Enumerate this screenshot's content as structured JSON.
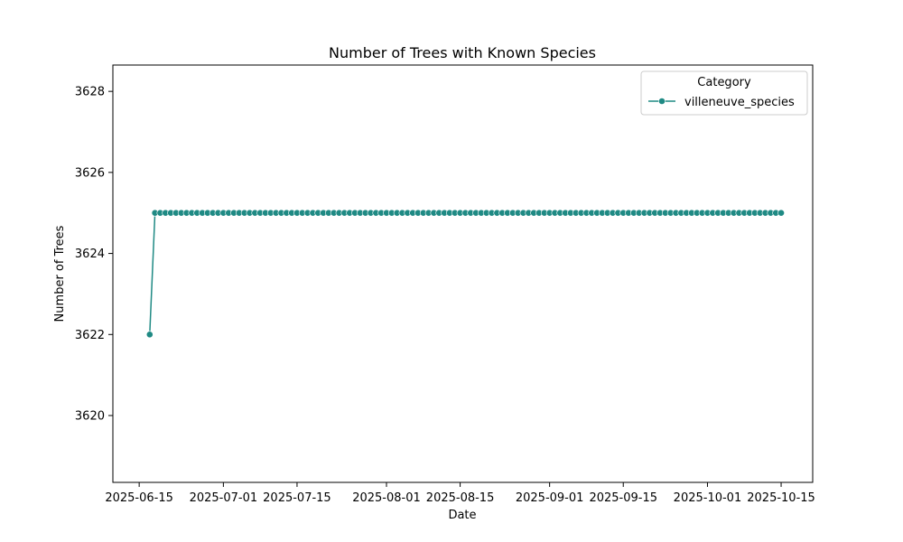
{
  "chart_data": {
    "type": "line",
    "title": "Number of Trees with Known Species",
    "xlabel": "Date",
    "ylabel": "Number of Trees",
    "x_ticks": [
      "2025-06-15",
      "2025-07-01",
      "2025-07-15",
      "2025-08-01",
      "2025-08-15",
      "2025-09-01",
      "2025-09-15",
      "2025-10-01",
      "2025-10-15"
    ],
    "y_ticks": [
      3620,
      3622,
      3624,
      3626,
      3628
    ],
    "xlim": [
      "2025-06-10",
      "2025-10-21"
    ],
    "ylim": [
      3618.35,
      3628.65
    ],
    "grid": false,
    "legend": {
      "title": "Category",
      "position": "top-right"
    },
    "colors": {
      "series": "#1f8a84"
    },
    "series": [
      {
        "name": "villeneuve_species",
        "marker": "circle",
        "start_date": "2025-06-17",
        "end_date": "2025-10-15",
        "values": [
          3622,
          3625,
          3625,
          3625,
          3625,
          3625,
          3625,
          3625,
          3625,
          3625,
          3625,
          3625,
          3625,
          3625,
          3625,
          3625,
          3625,
          3625,
          3625,
          3625,
          3625,
          3625,
          3625,
          3625,
          3625,
          3625,
          3625,
          3625,
          3625,
          3625,
          3625,
          3625,
          3625,
          3625,
          3625,
          3625,
          3625,
          3625,
          3625,
          3625,
          3625,
          3625,
          3625,
          3625,
          3625,
          3625,
          3625,
          3625,
          3625,
          3625,
          3625,
          3625,
          3625,
          3625,
          3625,
          3625,
          3625,
          3625,
          3625,
          3625,
          3625,
          3625,
          3625,
          3625,
          3625,
          3625,
          3625,
          3625,
          3625,
          3625,
          3625,
          3625,
          3625,
          3625,
          3625,
          3625,
          3625,
          3625,
          3625,
          3625,
          3625,
          3625,
          3625,
          3625,
          3625,
          3625,
          3625,
          3625,
          3625,
          3625,
          3625,
          3625,
          3625,
          3625,
          3625,
          3625,
          3625,
          3625,
          3625,
          3625,
          3625,
          3625,
          3625,
          3625,
          3625,
          3625,
          3625,
          3625,
          3625,
          3625,
          3625,
          3625,
          3625,
          3625,
          3625,
          3625,
          3625,
          3625,
          3625,
          3625,
          3625
        ]
      }
    ]
  }
}
